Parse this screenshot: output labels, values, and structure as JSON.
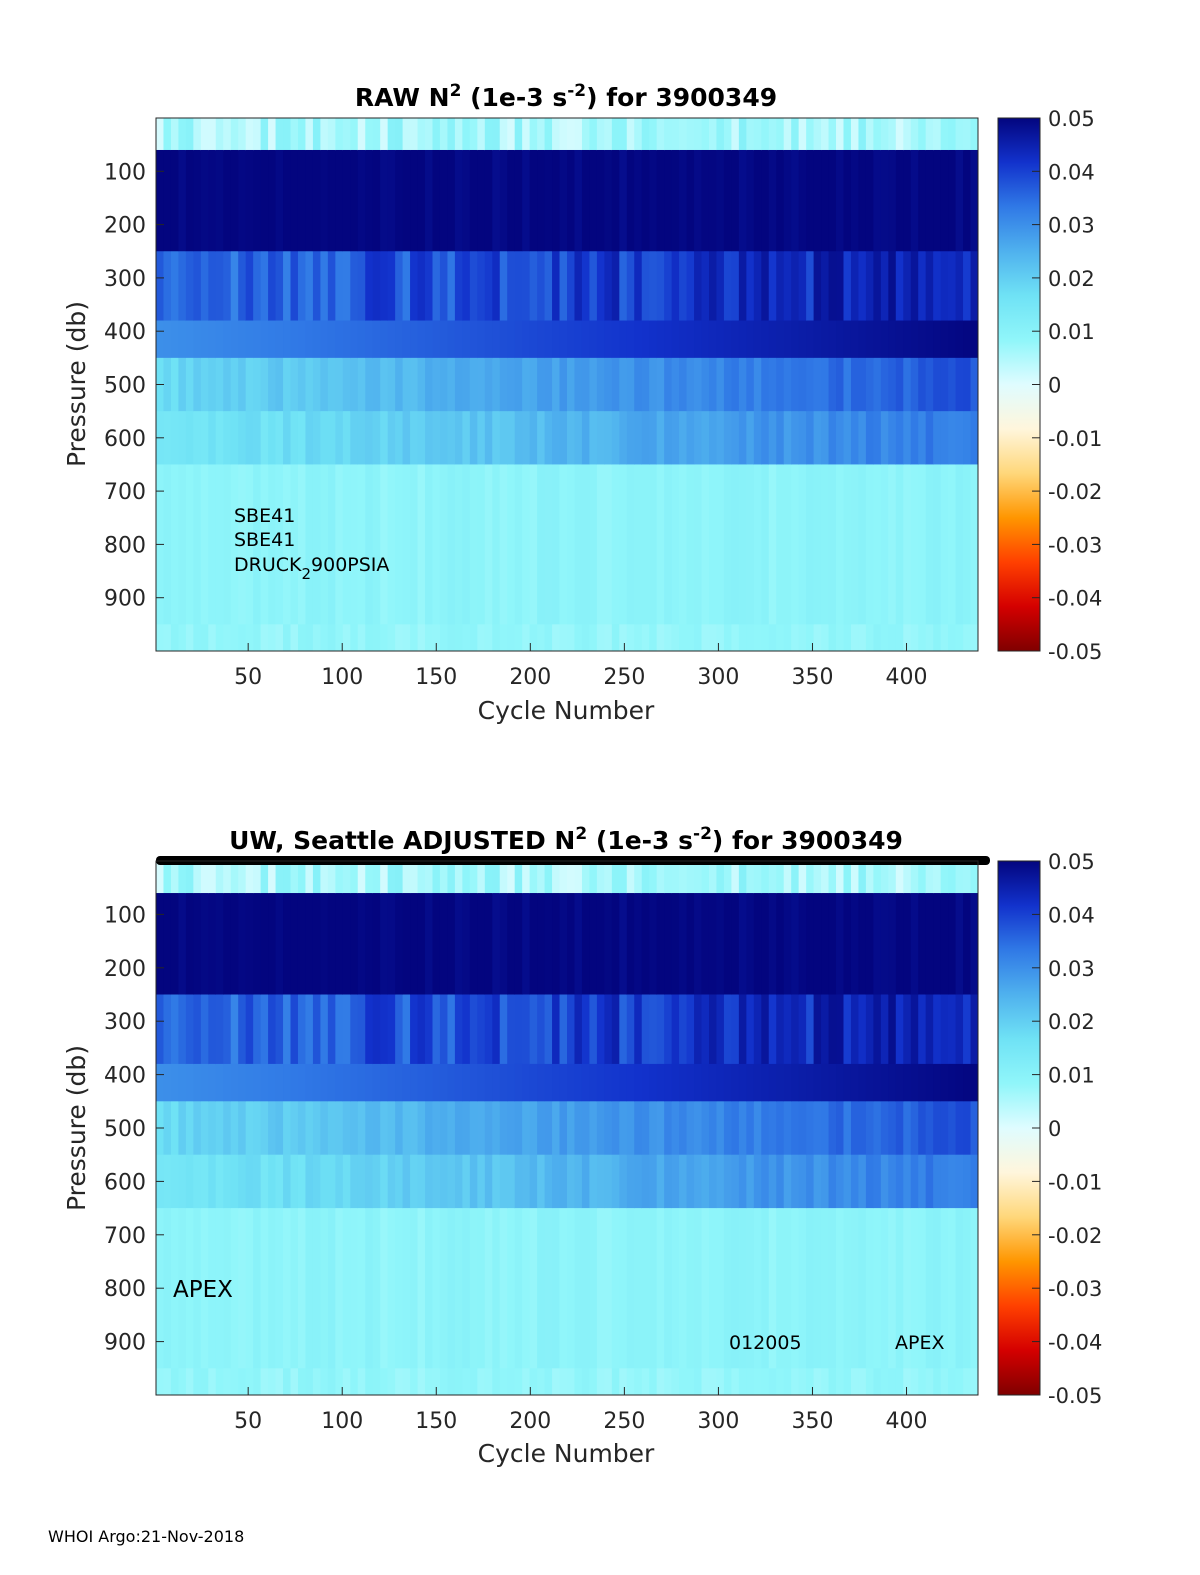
{
  "colormap": [
    "#800000",
    "#d40000",
    "#ff4000",
    "#ff9600",
    "#ffd77a",
    "#fff6dc",
    "#dffcff",
    "#90f6fa",
    "#6fe2f5",
    "#4fb1ee",
    "#3079e6",
    "#1232cc",
    "#03057f"
  ],
  "footer": "WHOI Argo:21-Nov-2018",
  "chart_data": [
    {
      "type": "heatmap",
      "title_main": "RAW N",
      "title_sup": "2",
      "title_mid": " (1e-3 s",
      "title_sup2": "-2",
      "title_end": ") for 3900349",
      "xlabel": "Cycle Number",
      "ylabel": "Pressure (db)",
      "xlim": [
        1,
        438
      ],
      "ylim": [
        0,
        1000
      ],
      "y_reversed": true,
      "xticks": [
        "50",
        "100",
        "150",
        "200",
        "250",
        "300",
        "350",
        "400"
      ],
      "yticks": [
        "100",
        "200",
        "300",
        "400",
        "500",
        "600",
        "700",
        "800",
        "900"
      ],
      "colorbar": {
        "range": [
          -0.05,
          0.05
        ],
        "ticks": [
          "0.05",
          "0.04",
          "0.03",
          "0.02",
          "0.01",
          "0",
          "-0.01",
          "-0.02",
          "-0.03",
          "-0.04",
          "-0.05"
        ]
      },
      "pressure_bands_db": [
        {
          "from": 0,
          "to": 60,
          "n2": 0.003
        },
        {
          "from": 60,
          "to": 250,
          "n2": 0.05
        },
        {
          "from": 250,
          "to": 380,
          "n2": 0.04
        },
        {
          "from": 380,
          "to": 450,
          "n2": 0.03
        },
        {
          "from": 450,
          "to": 550,
          "n2": 0.018
        },
        {
          "from": 550,
          "to": 650,
          "n2": 0.014
        },
        {
          "from": 650,
          "to": 950,
          "n2": 0.009
        },
        {
          "from": 950,
          "to": 1000,
          "n2": 0.008
        }
      ],
      "annotations": [
        {
          "text": "SBE41"
        },
        {
          "text": "SBE41"
        },
        {
          "text": "DRUCK",
          "sub": "2",
          "rest": "900PSIA"
        }
      ]
    },
    {
      "type": "heatmap",
      "title_pre": "UW, Seattle  ADJUSTED N",
      "title_sup": "2",
      "title_mid": " (1e-3 s",
      "title_sup2": "-2",
      "title_end": ") for 3900349",
      "xlabel": "Cycle Number",
      "ylabel": "Pressure (db)",
      "xlim": [
        1,
        438
      ],
      "ylim": [
        0,
        1000
      ],
      "y_reversed": true,
      "xticks": [
        "50",
        "100",
        "150",
        "200",
        "250",
        "300",
        "350",
        "400"
      ],
      "yticks": [
        "100",
        "200",
        "300",
        "400",
        "500",
        "600",
        "700",
        "800",
        "900"
      ],
      "colorbar": {
        "range": [
          -0.05,
          0.05
        ],
        "ticks": [
          "0.05",
          "0.04",
          "0.03",
          "0.02",
          "0.01",
          "0",
          "-0.01",
          "-0.02",
          "-0.03",
          "-0.04",
          "-0.05"
        ]
      },
      "annotations": [
        {
          "text": "APEX"
        },
        {
          "text": "012005"
        },
        {
          "text": "APEX"
        }
      ]
    }
  ]
}
